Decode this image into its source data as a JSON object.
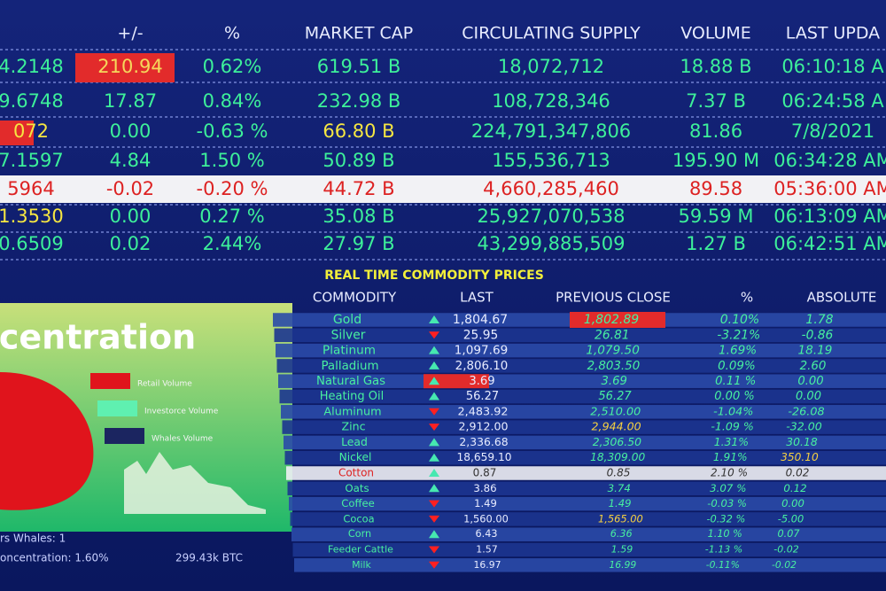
{
  "market": {
    "headers": [
      "+/-",
      "%",
      "MARKET CAP",
      "CIRCULATING SUPPLY",
      "VOLUME",
      "LAST UPDA"
    ],
    "rows": [
      [
        "4.2148",
        "210.94",
        "0.62%",
        "619.51 B",
        "18,072,712",
        "18.88 B",
        "06:10:18 A"
      ],
      [
        "9.6748",
        "17.87",
        "0.84%",
        "232.98 B",
        "108,728,346",
        "7.37 B",
        "06:24:58 A"
      ],
      [
        "072",
        "0.00",
        "-0.63 %",
        "66.80 B",
        "224,791,347,806",
        "81.86",
        "7/8/2021"
      ],
      [
        "7.1597",
        "4.84",
        "1.50 %",
        "50.89 B",
        "155,536,713",
        "195.90 M",
        "06:34:28 AM"
      ],
      [
        "5964",
        "-0.02",
        "-0.20 %",
        "44.72 B",
        "4,660,285,460",
        "89.58",
        "05:36:00 AM"
      ],
      [
        "1.3530",
        "0.00",
        "0.27 %",
        "35.08 B",
        "25,927,070,538",
        "59.59 M",
        "06:13:09 AM"
      ],
      [
        "0.6509",
        "0.02",
        "2.44%",
        "27.97 B",
        "43,299,885,509",
        "1.27 B",
        "06:42:51 AM"
      ]
    ]
  },
  "commodities": {
    "title": "REAL TIME COMMODITY PRICES",
    "headers": [
      "COMMODITY",
      "LAST",
      "PREVIOUS  CLOSE",
      "%",
      "ABSOLUTE"
    ],
    "rows": [
      [
        "Gold",
        "1,804.67",
        "1,802.89",
        "0.10%",
        "1.78"
      ],
      [
        "Silver",
        "25.95",
        "26.81",
        "-3.21%",
        "-0.86"
      ],
      [
        "Platinum",
        "1,097.69",
        "1,079.50",
        "1.69%",
        "18.19"
      ],
      [
        "Palladium",
        "2,806.10",
        "2,803.50",
        "0.09%",
        "2.60"
      ],
      [
        "Natural Gas",
        "3.69",
        "3.69",
        "0.11 %",
        "0.00"
      ],
      [
        "Heating Oil",
        "56.27",
        "56.27",
        "0.00 %",
        "0.00"
      ],
      [
        "Aluminum",
        "2,483.92",
        "2,510.00",
        "-1.04%",
        "-26.08"
      ],
      [
        "Zinc",
        "2,912.00",
        "2,944.00",
        "-1.09 %",
        "-32.00"
      ],
      [
        "Lead",
        "2,336.68",
        "2,306.50",
        "1.31%",
        "30.18"
      ],
      [
        "Nickel",
        "18,659.10",
        "18,309.00",
        "1.91%",
        "350.10"
      ],
      [
        "Cotton",
        "0.87",
        "0.85",
        "2.10 %",
        "0.02"
      ],
      [
        "Oats",
        "3.86",
        "3.74",
        "3.07 %",
        "0.12"
      ],
      [
        "Coffee",
        "1.49",
        "1.49",
        "-0.03 %",
        "0.00"
      ],
      [
        "Cocoa",
        "1,560.00",
        "1,565.00",
        "-0.32 %",
        "-5.00"
      ],
      [
        "Corn",
        "6.43",
        "6.36",
        "1.10 %",
        "0.07"
      ],
      [
        "Feeder Cattle",
        "1.57",
        "1.59",
        "-1.13 %",
        "-0.02"
      ],
      [
        "Milk",
        "16.97",
        "16.99",
        "-0.11%",
        "-0.02"
      ]
    ]
  },
  "panel": {
    "title": "centration",
    "legend": [
      "Retail Volume",
      "Investorce Volume",
      "Whales Volume"
    ],
    "footer": [
      "rs Whales: 1",
      "oncentration: 1.60%",
      "299.43k BTC"
    ]
  }
}
